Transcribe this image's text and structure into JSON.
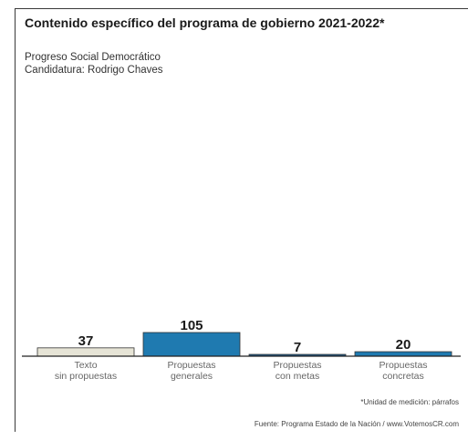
{
  "title": "Contenido específico del programa de gobierno 2021-2022*",
  "party": "Progreso Social Democrático",
  "candidate": "Candidatura: Rodrigo Chaves",
  "unit_note": "*Unidad de medición: párrafos",
  "source_note": "Fuente: Programa Estado de la Nación / www.VotemosCR.com",
  "chart_data": {
    "type": "bar",
    "title": "Contenido específico del programa de gobierno 2021-2022*",
    "xlabel": "",
    "ylabel": "",
    "categories": [
      [
        "Texto",
        "sin propuestas"
      ],
      [
        "Propuestas",
        "generales"
      ],
      [
        "Propuestas",
        "con metas"
      ],
      [
        "Propuestas",
        "concretas"
      ]
    ],
    "values": [
      37,
      105,
      7,
      20
    ],
    "colors": [
      "#e6e4d6",
      "#1f7ab0",
      "#1f5a8a",
      "#1f7ab0"
    ],
    "ylim": [
      0,
      105
    ],
    "grid": false,
    "legend": "none"
  }
}
